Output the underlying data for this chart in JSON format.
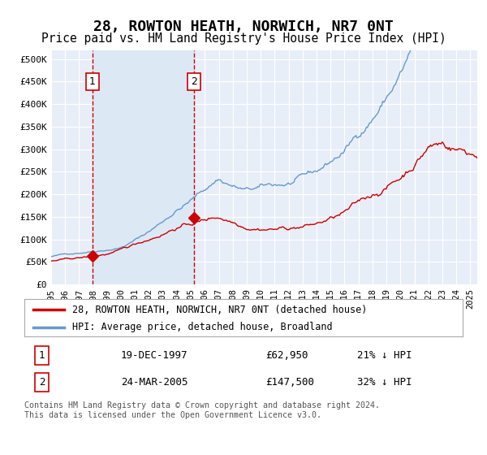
{
  "title": "28, ROWTON HEATH, NORWICH, NR7 0NT",
  "subtitle": "Price paid vs. HM Land Registry's House Price Index (HPI)",
  "title_fontsize": 13,
  "subtitle_fontsize": 10.5,
  "ylim": [
    0,
    520000
  ],
  "yticks": [
    0,
    50000,
    100000,
    150000,
    200000,
    250000,
    300000,
    350000,
    400000,
    450000,
    500000
  ],
  "bg_color": "#ffffff",
  "plot_bg_color": "#e8eef8",
  "grid_color": "#ffffff",
  "hpi_color": "#6699cc",
  "price_color": "#cc0000",
  "shade_color": "#dde8f5",
  "vline_color": "#cc0000",
  "transaction1": {
    "date_num": 1997.96,
    "price": 62950,
    "label": "1"
  },
  "transaction2": {
    "date_num": 2005.22,
    "price": 147500,
    "label": "2"
  },
  "legend_entry1": "28, ROWTON HEATH, NORWICH, NR7 0NT (detached house)",
  "legend_entry2": "HPI: Average price, detached house, Broadland",
  "table_row1": [
    "1",
    "19-DEC-1997",
    "£62,950",
    "21% ↓ HPI"
  ],
  "table_row2": [
    "2",
    "24-MAR-2005",
    "£147,500",
    "32% ↓ HPI"
  ],
  "footer": "Contains HM Land Registry data © Crown copyright and database right 2024.\nThis data is licensed under the Open Government Licence v3.0.",
  "xmin": 1995,
  "xmax": 2025.5
}
